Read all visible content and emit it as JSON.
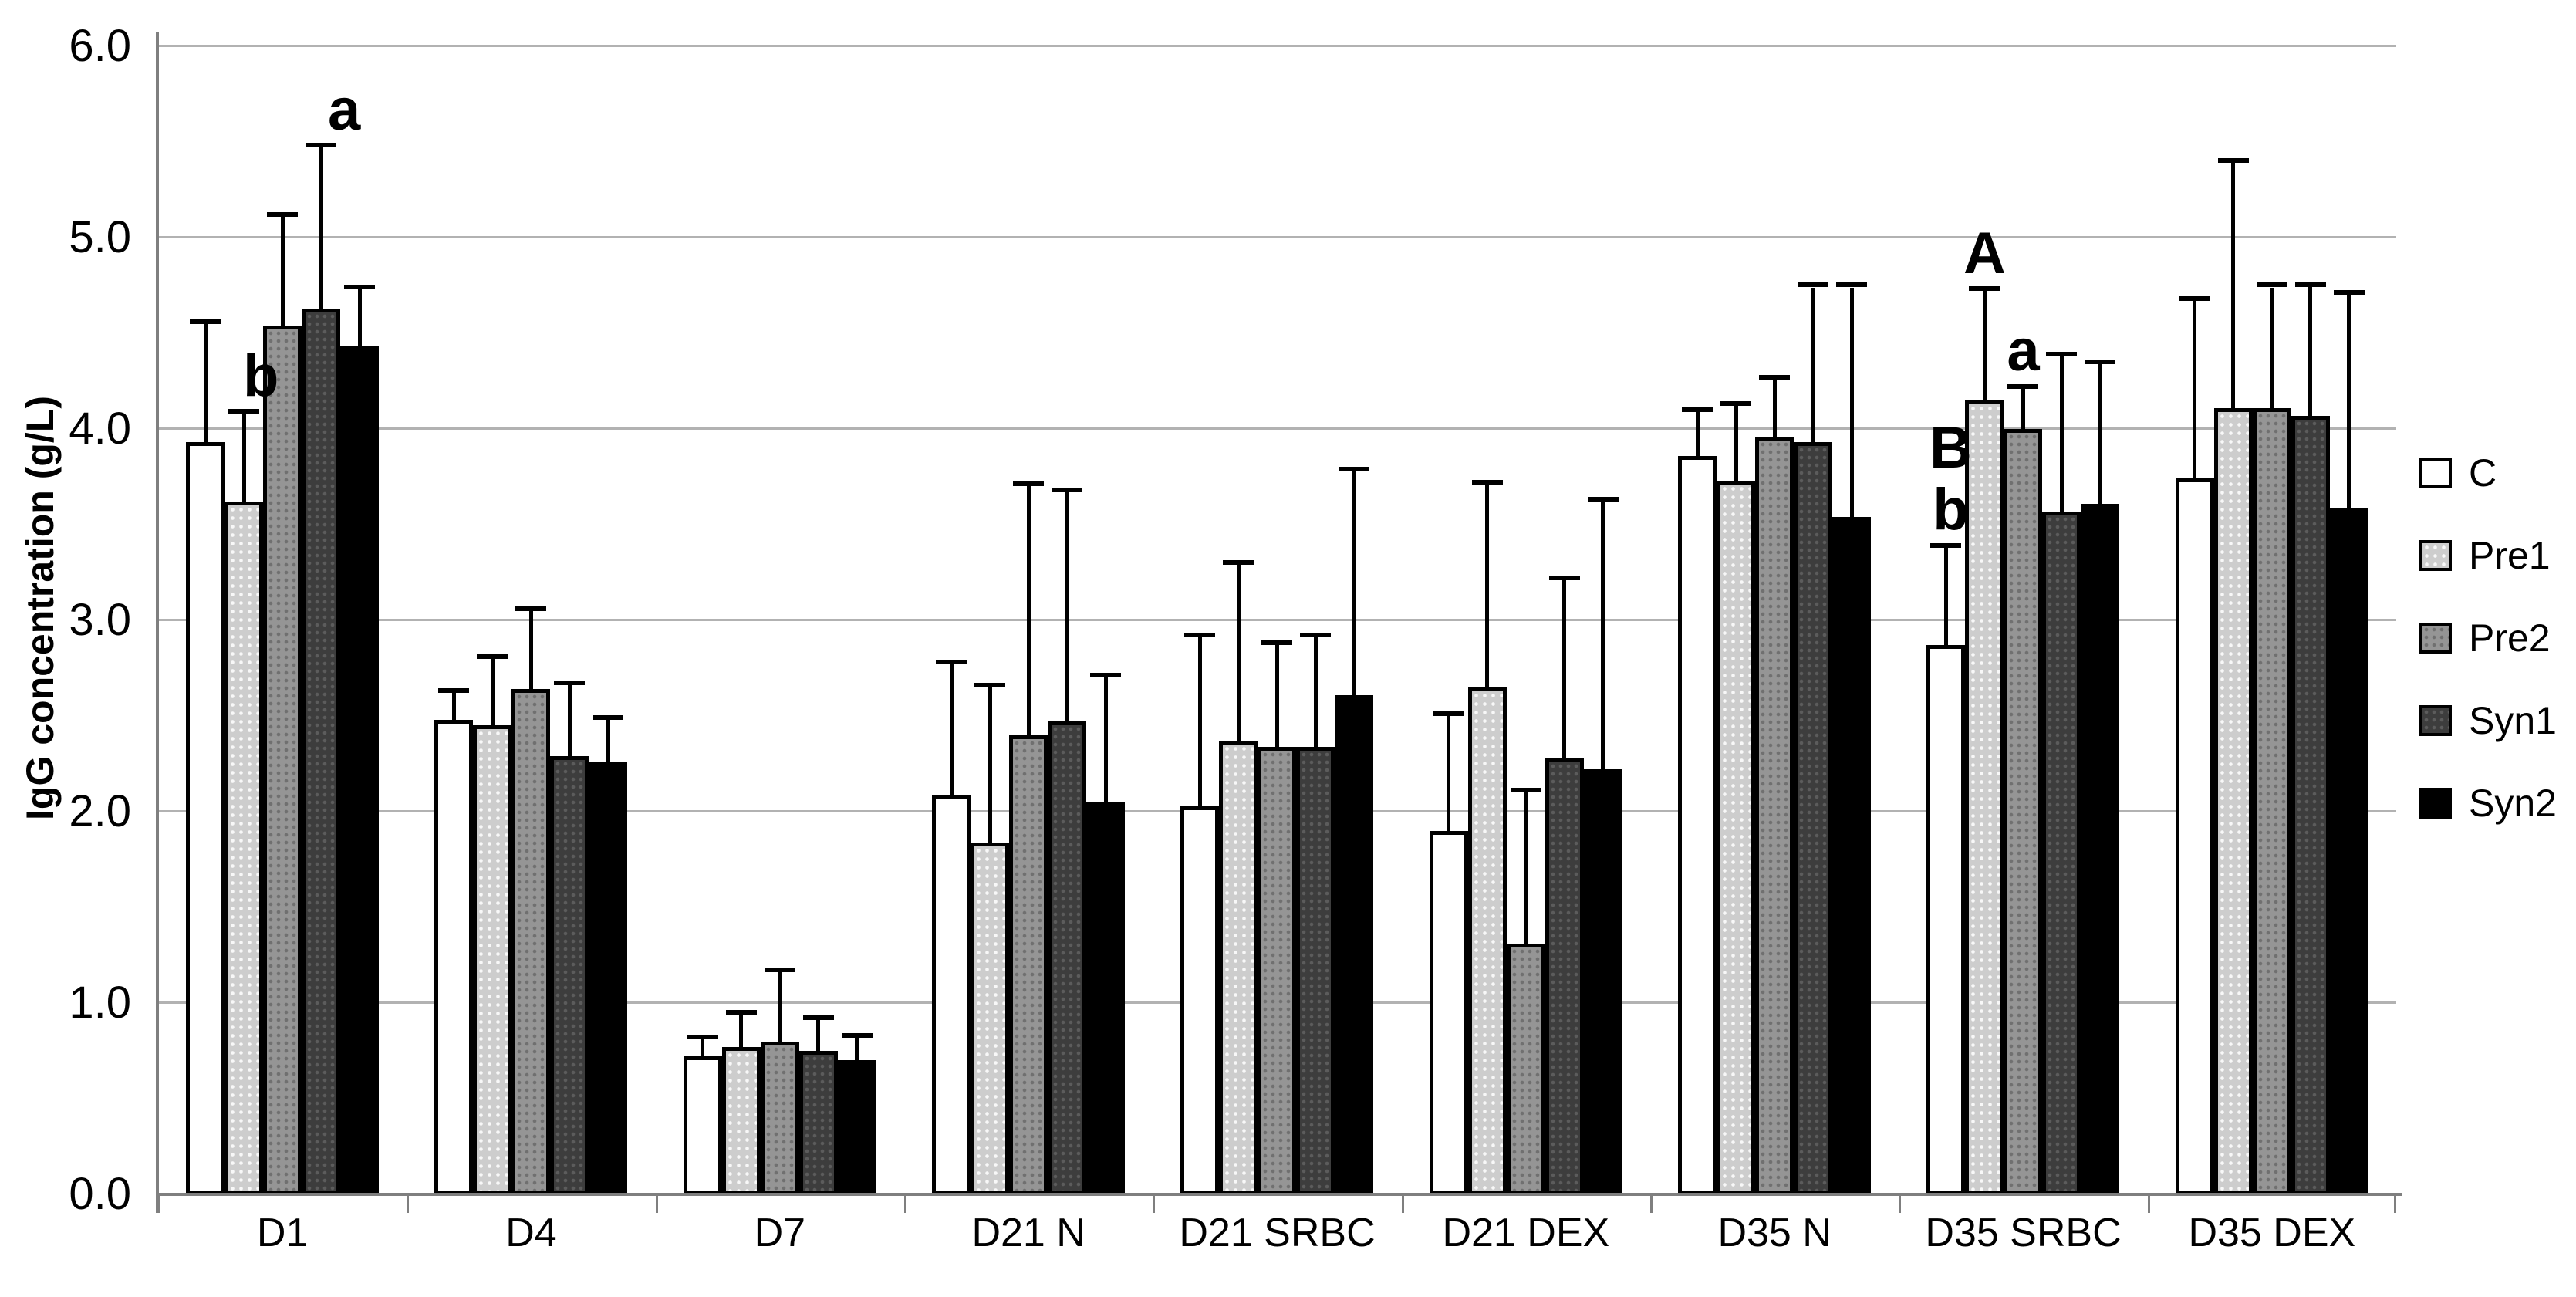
{
  "chart_data": {
    "type": "bar",
    "title": "",
    "ylabel": "IgG concentration (g/L)",
    "xlabel": "",
    "ylim": [
      0,
      6
    ],
    "ytick_step": 1.0,
    "yticks": [
      "0.0",
      "1.0",
      "2.0",
      "3.0",
      "4.0",
      "5.0",
      "6.0"
    ],
    "grid": "horizontal",
    "legend_position": "right",
    "error_bars": "plus-sd",
    "categories": [
      "D1",
      "D4",
      "D7",
      "D21 N",
      "D21 SRBC",
      "D21 DEX",
      "D35 N",
      "D35 SRBC",
      "D35 DEX"
    ],
    "series": [
      {
        "name": "C",
        "color": "#ffffff",
        "pattern": "none",
        "values": [
          3.93,
          2.48,
          0.72,
          2.09,
          2.03,
          1.9,
          3.86,
          2.87,
          3.74
        ],
        "err_top": [
          4.55,
          2.62,
          0.81,
          2.77,
          2.91,
          2.5,
          4.09,
          3.38,
          4.67
        ]
      },
      {
        "name": "Pre1",
        "color": "#cdcdcd",
        "pattern": "light-dots",
        "values": [
          3.62,
          2.45,
          0.77,
          1.84,
          2.37,
          2.65,
          3.73,
          4.15,
          4.11
        ],
        "err_top": [
          4.08,
          2.8,
          0.94,
          2.65,
          3.29,
          3.71,
          4.12,
          4.72,
          5.39
        ]
      },
      {
        "name": "Pre2",
        "color": "#959595",
        "pattern": "dark-dots",
        "values": [
          4.54,
          2.64,
          0.8,
          2.4,
          2.34,
          1.31,
          3.96,
          4.0,
          4.11
        ],
        "err_top": [
          5.11,
          3.05,
          1.16,
          3.7,
          2.87,
          2.1,
          4.26,
          4.21,
          4.74
        ]
      },
      {
        "name": "Syn1",
        "color": "#3d3d3d",
        "pattern": "dim-dots",
        "values": [
          4.63,
          2.29,
          0.75,
          2.47,
          2.34,
          2.28,
          3.93,
          3.57,
          4.07
        ],
        "err_top": [
          5.47,
          2.66,
          0.91,
          3.67,
          2.91,
          3.21,
          4.74,
          4.38,
          4.74
        ]
      },
      {
        "name": "Syn2",
        "color": "#000000",
        "pattern": "none",
        "values": [
          4.43,
          2.26,
          0.7,
          2.05,
          2.61,
          2.22,
          3.54,
          3.61,
          3.59
        ],
        "err_top": [
          4.73,
          2.48,
          0.82,
          2.7,
          3.78,
          3.62,
          4.74,
          4.34,
          4.7
        ]
      }
    ],
    "annotations": [
      {
        "text": "b",
        "category": "D1",
        "series": "Pre1",
        "stack": 0,
        "dx": 22
      },
      {
        "text": "a",
        "category": "D1",
        "series": "Syn1",
        "stack": 0,
        "dx": 30
      },
      {
        "text": "B",
        "category": "D35 SRBC",
        "series": "C",
        "stack": 1,
        "dx": 6
      },
      {
        "text": "b",
        "category": "D35 SRBC",
        "series": "C",
        "stack": 0,
        "dx": 6
      },
      {
        "text": "A",
        "category": "D35 SRBC",
        "series": "Pre1",
        "stack": 0,
        "dx": 0
      },
      {
        "text": "a",
        "category": "D35 SRBC",
        "series": "Pre2",
        "stack": 0,
        "dx": 0
      }
    ],
    "colors": {
      "background": "#ffffff",
      "gridline": "#b2b2b2",
      "axis": "#7f7f7f",
      "error_bar": "#000000",
      "bar_border": "#000000"
    }
  }
}
